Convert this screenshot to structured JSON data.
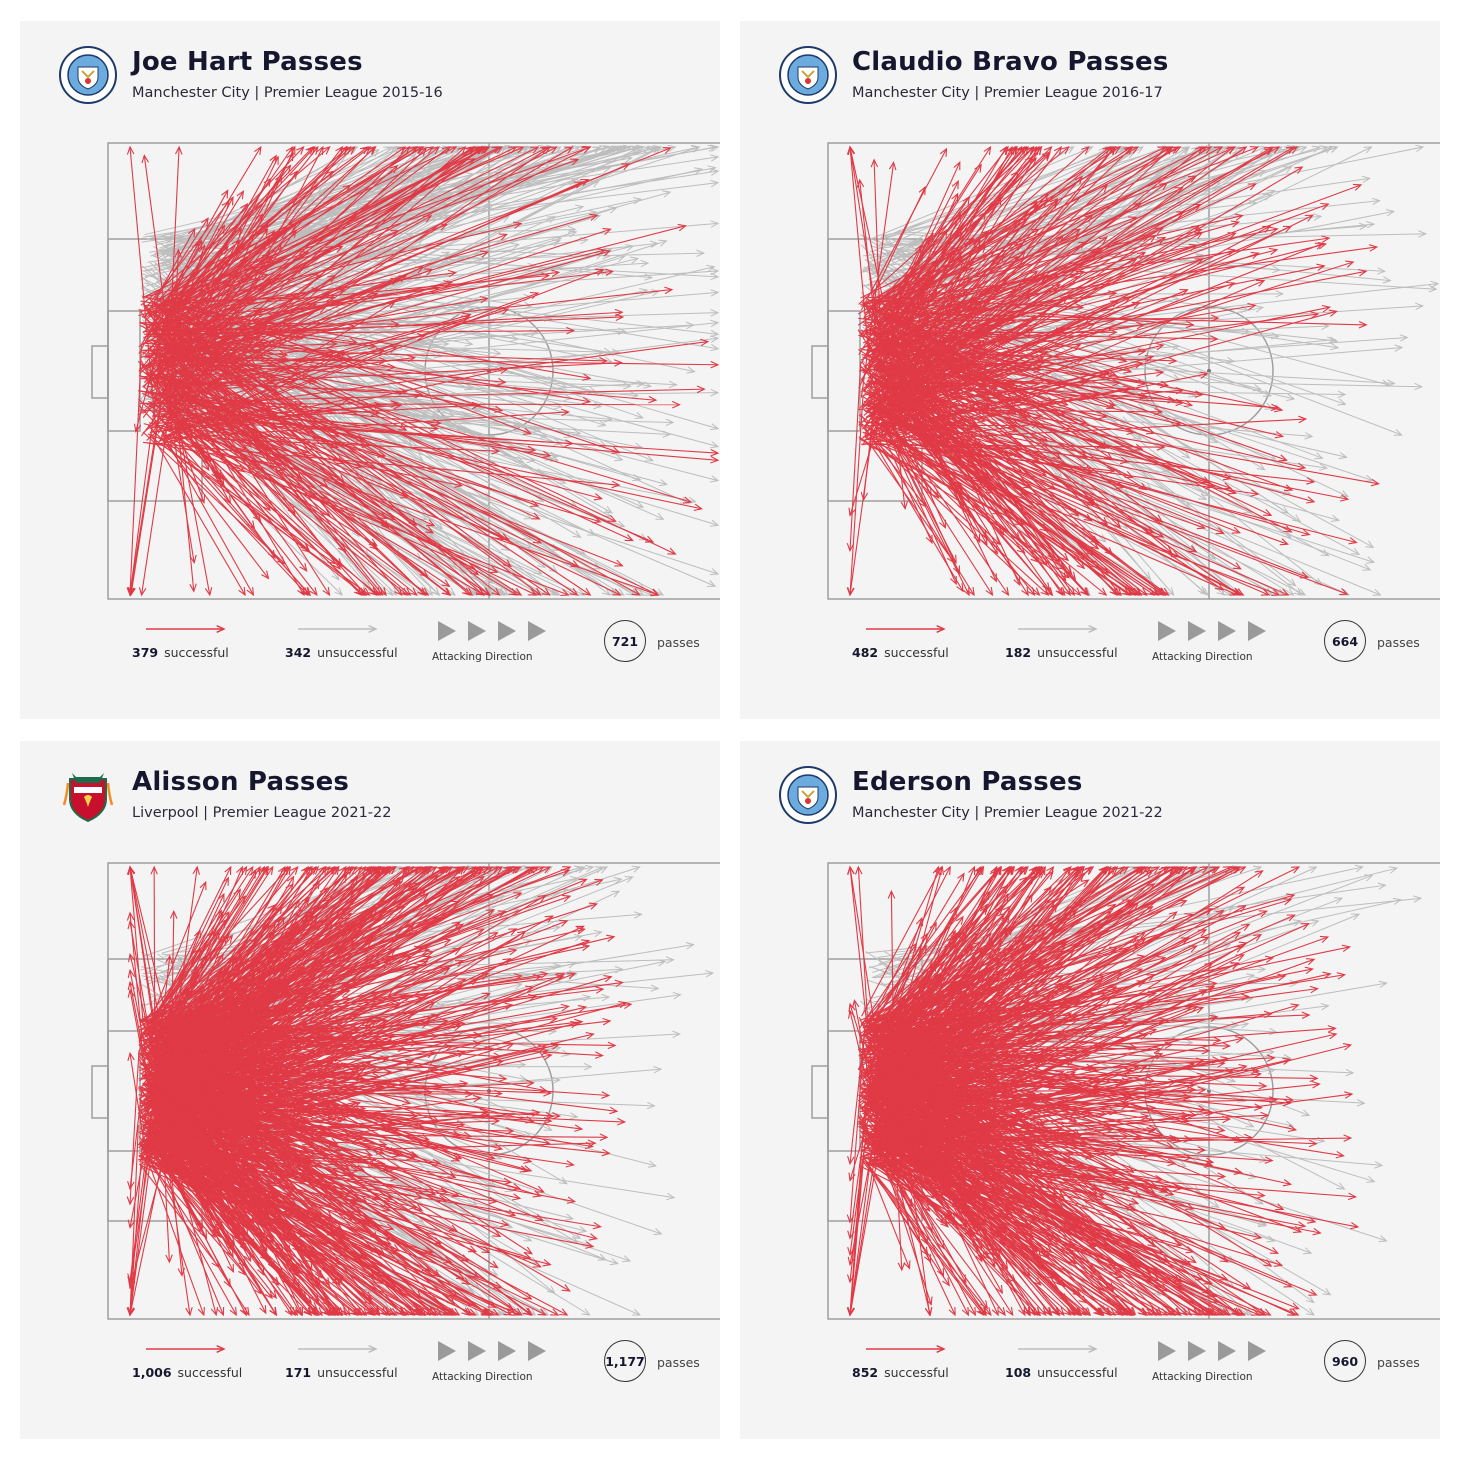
{
  "chart_data": [
    {
      "type": "pass-map",
      "title": "Joe Hart Passes",
      "subtitle": "Manchester City | Premier League 2015-16",
      "club": "Manchester City",
      "crest": "manchester-city-crest",
      "successful": 379,
      "successful_label": "379",
      "successful_text": "successful",
      "unsuccessful": 342,
      "unsuccessful_label": "342",
      "unsuccessful_text": "unsuccessful",
      "total": 721,
      "total_label": "721",
      "total_text": "passes",
      "direction_label": "Attacking Direction",
      "colors": {
        "successful": "#e03a46",
        "unsuccessful": "#bdbdbd"
      }
    },
    {
      "type": "pass-map",
      "title": "Claudio Bravo Passes",
      "subtitle": "Manchester City | Premier League 2016-17",
      "club": "Manchester City",
      "crest": "manchester-city-crest",
      "successful": 482,
      "successful_label": "482",
      "successful_text": "successful",
      "unsuccessful": 182,
      "unsuccessful_label": "182",
      "unsuccessful_text": "unsuccessful",
      "total": 664,
      "total_label": "664",
      "total_text": "passes",
      "direction_label": "Attacking Direction",
      "colors": {
        "successful": "#e03a46",
        "unsuccessful": "#bdbdbd"
      }
    },
    {
      "type": "pass-map",
      "title": "Alisson Passes",
      "subtitle": "Liverpool | Premier League 2021-22",
      "club": "Liverpool",
      "crest": "liverpool-crest",
      "successful": 1006,
      "successful_label": "1,006",
      "successful_text": "successful",
      "unsuccessful": 171,
      "unsuccessful_label": "171",
      "unsuccessful_text": "unsuccessful",
      "total": 1177,
      "total_label": "1,177",
      "total_text": "passes",
      "direction_label": "Attacking Direction",
      "colors": {
        "successful": "#e03a46",
        "unsuccessful": "#bdbdbd"
      }
    },
    {
      "type": "pass-map",
      "title": "Ederson Passes",
      "subtitle": "Manchester City | Premier League 2021-22",
      "club": "Manchester City",
      "crest": "manchester-city-crest",
      "successful": 852,
      "successful_label": "852",
      "successful_text": "successful",
      "unsuccessful": 108,
      "unsuccessful_label": "108",
      "unsuccessful_text": "unsuccessful",
      "total": 960,
      "total_label": "960",
      "total_text": "passes",
      "direction_label": "Attacking Direction",
      "colors": {
        "successful": "#e03a46",
        "unsuccessful": "#bdbdbd"
      }
    }
  ]
}
